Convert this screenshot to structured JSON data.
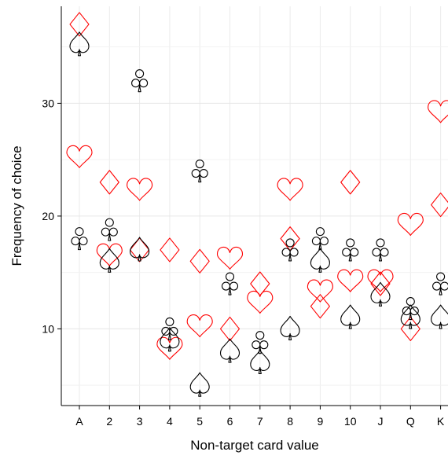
{
  "chart_data": {
    "type": "scatter",
    "title": "",
    "xlabel": "Non-target card value",
    "ylabel": "Frequency of choice",
    "categories": [
      "A",
      "2",
      "3",
      "4",
      "5",
      "6",
      "7",
      "8",
      "9",
      "10",
      "J",
      "Q",
      "K"
    ],
    "y_ticks": [
      10,
      20,
      30
    ],
    "ylim": [
      3.2,
      38.6
    ],
    "grid": true,
    "legend": "none",
    "marker_note": "points are drawn as playing-card suit symbols",
    "series": [
      {
        "suit": "hearts",
        "marker": "heart-icon",
        "color": "#ff0000",
        "values": [
          25.2,
          16.5,
          22.3,
          8.2,
          10.2,
          16.2,
          12.3,
          22.3,
          13.3,
          14.2,
          14.2,
          19.2,
          29.2
        ]
      },
      {
        "suit": "diamonds",
        "marker": "diamond-icon",
        "color": "#ff0000",
        "values": [
          37.0,
          23.0,
          17.0,
          17.0,
          16.0,
          10.0,
          14.0,
          18.0,
          12.0,
          23.0,
          14.0,
          10.0,
          21.0
        ]
      },
      {
        "suit": "clubs",
        "marker": "club-icon",
        "color": "#000000",
        "values": [
          18.0,
          18.8,
          32.0,
          10.0,
          24.0,
          14.0,
          8.8,
          17.0,
          18.0,
          17.0,
          17.0,
          11.8,
          14.0
        ]
      },
      {
        "suit": "spades",
        "marker": "spade-icon",
        "color": "#000000",
        "values": [
          35.2,
          16.0,
          17.0,
          9.0,
          5.0,
          8.0,
          7.0,
          10.0,
          16.0,
          11.0,
          13.0,
          11.0,
          11.0
        ]
      }
    ]
  }
}
